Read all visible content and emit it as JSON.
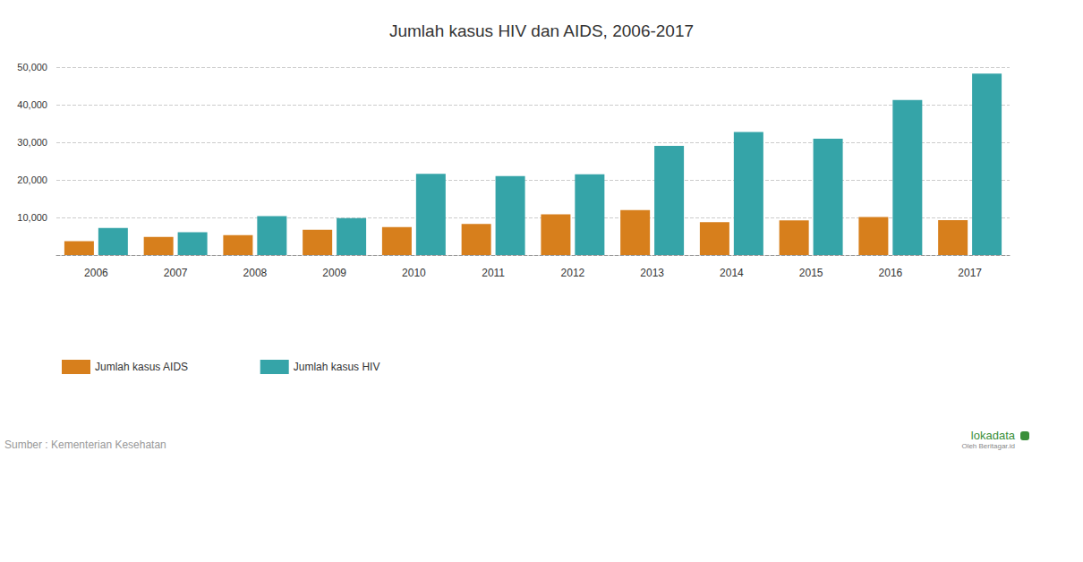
{
  "chart_data": {
    "type": "bar",
    "title": "Jumlah kasus HIV dan AIDS, 2006-2017",
    "categories": [
      "2006",
      "2007",
      "2008",
      "2009",
      "2010",
      "2011",
      "2012",
      "2013",
      "2014",
      "2015",
      "2016",
      "2017"
    ],
    "series": [
      {
        "name": "Jumlah kasus AIDS",
        "color": "#d77f1c",
        "values": [
          3680,
          4828,
          5298,
          6744,
          7470,
          8279,
          10862,
          11960,
          8748,
          9215,
          10146,
          9280
        ]
      },
      {
        "name": "Jumlah kasus HIV",
        "color": "#35a4a8",
        "values": [
          7195,
          6048,
          10362,
          9793,
          21591,
          21031,
          21511,
          29037,
          32711,
          30935,
          41250,
          48300
        ]
      }
    ],
    "ylim": [
      0,
      50000
    ],
    "yticks": [
      {
        "value": 10000,
        "label": "10,000"
      },
      {
        "value": 20000,
        "label": "20,000"
      },
      {
        "value": 30000,
        "label": "30,000"
      },
      {
        "value": 40000,
        "label": "40,000"
      },
      {
        "value": 50000,
        "label": "50,000"
      }
    ],
    "grid": true,
    "legend": "bottom-left",
    "annotations": [
      "Sumber : Kementerian Kesehatan",
      "lokadata",
      "Oleh Beritagar.id"
    ]
  }
}
